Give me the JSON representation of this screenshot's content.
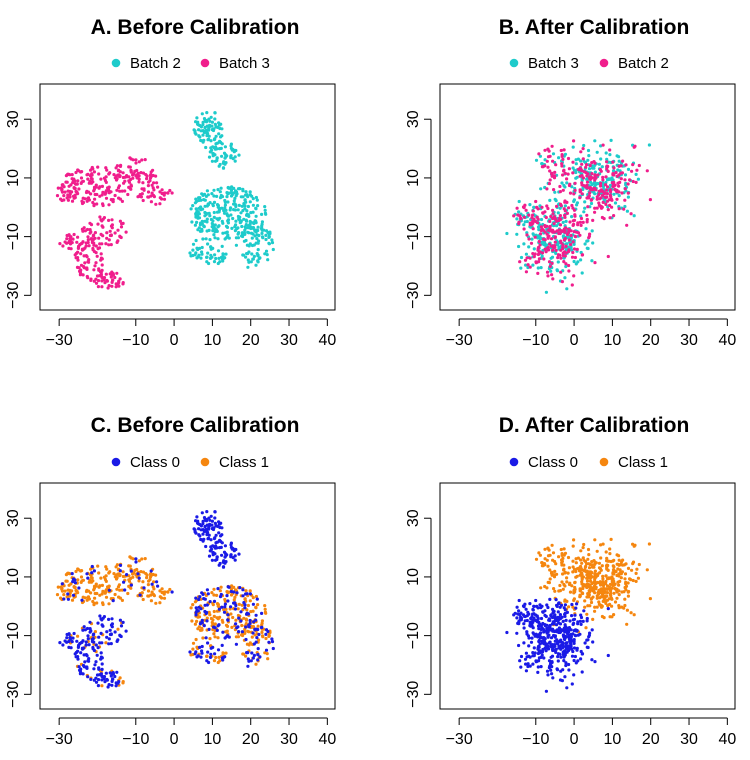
{
  "colors": {
    "teal": "#1ecbcb",
    "pink": "#f01e8c",
    "blue": "#1a1ae6",
    "orange": "#f5860f"
  },
  "chart_data": [
    {
      "type": "scatter",
      "title": "A. Before Calibration",
      "legend": {
        "position": "top-center",
        "entries": [
          "Batch 2",
          "Batch 3"
        ]
      },
      "series": [
        {
          "name": "Batch 2",
          "color": "#1ecbcb",
          "clusters": [
            {
              "region": "x 4..26, y -23..35",
              "approx_points": 550
            }
          ]
        },
        {
          "name": "Batch 3",
          "color": "#f01e8c",
          "clusters": [
            {
              "region": "x -30..2, y -30..20",
              "approx_points": 450
            }
          ]
        }
      ],
      "xlim": [
        -35,
        42
      ],
      "ylim": [
        -35,
        42
      ],
      "xticks": [
        -30,
        -10,
        0,
        10,
        20,
        30,
        40
      ],
      "yticks": [
        -30,
        -10,
        10,
        30
      ],
      "grid": false
    },
    {
      "type": "scatter",
      "title": "B. After Calibration",
      "legend": {
        "position": "top-center",
        "entries": [
          "Batch 3",
          "Batch 2"
        ]
      },
      "series": [
        {
          "name": "Batch 3",
          "color": "#1ecbcb",
          "clusters": [
            {
              "region": "x -16..20, y -28..27",
              "approx_points": 500
            }
          ]
        },
        {
          "name": "Batch 2",
          "color": "#f01e8c",
          "clusters": [
            {
              "region": "x -14..20, y -27..27",
              "approx_points": 500
            }
          ]
        }
      ],
      "xlim": [
        -35,
        42
      ],
      "ylim": [
        -35,
        42
      ],
      "xticks": [
        -30,
        -10,
        0,
        10,
        20,
        30,
        40
      ],
      "yticks": [
        -30,
        -10,
        10,
        30
      ],
      "grid": false
    },
    {
      "type": "scatter",
      "title": "C. Before Calibration",
      "legend": {
        "position": "top-center",
        "entries": [
          "Class 0",
          "Class 1"
        ]
      },
      "series": [
        {
          "name": "Class 0",
          "color": "#1a1ae6",
          "clusters": [
            {
              "region": "x -30..-12, y -30..-5 and x 4..26, y -20..35",
              "approx_points": 500
            }
          ]
        },
        {
          "name": "Class 1",
          "color": "#f5860f",
          "clusters": [
            {
              "region": "x -30..0, y -10..20 and x 3..26, y -22..10",
              "approx_points": 500
            }
          ]
        }
      ],
      "xlim": [
        -35,
        42
      ],
      "ylim": [
        -35,
        42
      ],
      "xticks": [
        -30,
        -10,
        0,
        10,
        20,
        30,
        40
      ],
      "yticks": [
        -30,
        -10,
        10,
        30
      ],
      "grid": false
    },
    {
      "type": "scatter",
      "title": "D. After Calibration",
      "legend": {
        "position": "top-center",
        "entries": [
          "Class 0",
          "Class 1"
        ]
      },
      "series": [
        {
          "name": "Class 0",
          "color": "#1a1ae6",
          "clusters": [
            {
              "region": "x -16..8, y -28..3",
              "approx_points": 500
            }
          ]
        },
        {
          "name": "Class 1",
          "color": "#f5860f",
          "clusters": [
            {
              "region": "x -10..20, y -15..27",
              "approx_points": 500
            }
          ]
        }
      ],
      "xlim": [
        -35,
        42
      ],
      "ylim": [
        -35,
        42
      ],
      "xticks": [
        -30,
        -10,
        0,
        10,
        20,
        30,
        40
      ],
      "yticks": [
        -30,
        -10,
        10,
        30
      ],
      "grid": false
    }
  ]
}
